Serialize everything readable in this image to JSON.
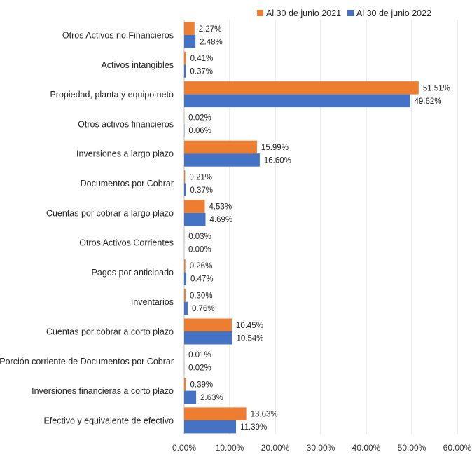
{
  "chart_data": {
    "type": "bar",
    "orientation": "horizontal",
    "categories": [
      "Otros Activos no Financieros",
      "Activos intangibles",
      "Propiedad, planta y equipo neto",
      "Otros activos financieros",
      "Inversiones a largo plazo",
      "Documentos por Cobrar",
      "Cuentas por cobrar a largo plazo",
      "Otros Activos Corrientes",
      "Pagos por anticipado",
      "Inventarios",
      "Cuentas por cobrar a corto plazo",
      "Porción corriente de Documentos por Cobrar",
      "Inversiones financieras a corto plazo",
      "Efectivo y equivalente de efectivo"
    ],
    "series": [
      {
        "name": "Al 30 de junio 2021",
        "color": "#ED7D31",
        "values": [
          2.27,
          0.41,
          51.51,
          0.02,
          15.99,
          0.21,
          4.53,
          0.03,
          0.26,
          0.3,
          10.45,
          0.01,
          0.39,
          13.63
        ],
        "labels": [
          "2.27%",
          "0.41%",
          "51.51%",
          "0.02%",
          "15.99%",
          "0.21%",
          "4.53%",
          "0.03%",
          "0.26%",
          "0.30%",
          "10.45%",
          "0.01%",
          "0.39%",
          "13.63%"
        ]
      },
      {
        "name": "Al 30 de junio 2022",
        "color": "#4472C4",
        "values": [
          2.48,
          0.37,
          49.62,
          0.06,
          16.6,
          0.37,
          4.69,
          0.0,
          0.47,
          0.76,
          10.54,
          0.02,
          2.63,
          11.39
        ],
        "labels": [
          "2.48%",
          "0.37%",
          "49.62%",
          "0.06%",
          "16.60%",
          "0.37%",
          "4.69%",
          "0.00%",
          "0.47%",
          "0.76%",
          "10.54%",
          "0.02%",
          "2.63%",
          "11.39%"
        ]
      }
    ],
    "xlim": [
      0,
      60
    ],
    "xticks": [
      0,
      10,
      20,
      30,
      40,
      50,
      60
    ],
    "xtick_labels": [
      "0.00%",
      "10.00%",
      "20.00%",
      "30.00%",
      "40.00%",
      "50.00%",
      "60.00%"
    ],
    "grid": true,
    "legend_position": "top-right"
  }
}
